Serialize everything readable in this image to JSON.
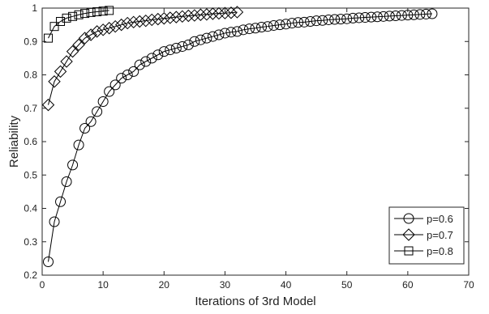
{
  "chart_data": {
    "type": "line",
    "title": "",
    "xlabel": "Iterations of 3rd Model",
    "ylabel": "Reliability",
    "xlim": [
      0,
      70
    ],
    "ylim": [
      0.2,
      1.0
    ],
    "xticks": [
      0,
      10,
      20,
      30,
      40,
      50,
      60,
      70
    ],
    "yticks": [
      0.2,
      0.3,
      0.4,
      0.5,
      0.6,
      0.7,
      0.8,
      0.9,
      1.0
    ],
    "xtick_labels": [
      "0",
      "10",
      "20",
      "30",
      "40",
      "50",
      "60",
      "70"
    ],
    "ytick_labels": [
      "0.2",
      "0.3",
      "0.4",
      "0.5",
      "0.6",
      "0.7",
      "0.8",
      "0.9",
      "1"
    ],
    "grid": false,
    "legend_position": "bottom-right",
    "line_color": "#000000",
    "series": [
      {
        "name": "p=0.6",
        "marker": "circle",
        "x": [
          1,
          2,
          3,
          4,
          5,
          6,
          7,
          8,
          9,
          10,
          11,
          12,
          13,
          14,
          15,
          16,
          17,
          18,
          19,
          20,
          21,
          22,
          23,
          24,
          25,
          26,
          27,
          28,
          29,
          30,
          31,
          32,
          33,
          34,
          35,
          36,
          37,
          38,
          39,
          40,
          41,
          42,
          43,
          44,
          45,
          46,
          47,
          48,
          49,
          50,
          51,
          52,
          53,
          54,
          55,
          56,
          57,
          58,
          59,
          60,
          61,
          62,
          63,
          64
        ],
        "y": [
          0.24,
          0.36,
          0.42,
          0.48,
          0.53,
          0.59,
          0.64,
          0.66,
          0.69,
          0.72,
          0.75,
          0.77,
          0.79,
          0.8,
          0.81,
          0.83,
          0.84,
          0.85,
          0.86,
          0.87,
          0.875,
          0.88,
          0.885,
          0.89,
          0.9,
          0.905,
          0.91,
          0.915,
          0.92,
          0.925,
          0.928,
          0.93,
          0.935,
          0.938,
          0.94,
          0.943,
          0.945,
          0.948,
          0.95,
          0.952,
          0.955,
          0.957,
          0.958,
          0.96,
          0.962,
          0.963,
          0.965,
          0.966,
          0.967,
          0.968,
          0.97,
          0.971,
          0.972,
          0.973,
          0.974,
          0.975,
          0.976,
          0.977,
          0.978,
          0.979,
          0.98,
          0.981,
          0.982,
          0.983
        ]
      },
      {
        "name": "p=0.7",
        "marker": "diamond",
        "x": [
          1,
          2,
          3,
          4,
          5,
          6,
          7,
          8,
          9,
          10,
          11,
          12,
          13,
          14,
          15,
          16,
          17,
          18,
          19,
          20,
          21,
          22,
          23,
          24,
          25,
          26,
          27,
          28,
          29,
          30,
          31,
          32
        ],
        "y": [
          0.71,
          0.78,
          0.81,
          0.84,
          0.87,
          0.89,
          0.91,
          0.92,
          0.93,
          0.935,
          0.94,
          0.945,
          0.95,
          0.955,
          0.958,
          0.96,
          0.962,
          0.965,
          0.967,
          0.969,
          0.971,
          0.973,
          0.975,
          0.977,
          0.978,
          0.98,
          0.981,
          0.983,
          0.984,
          0.985,
          0.986,
          0.988
        ]
      },
      {
        "name": "p=0.8",
        "marker": "square",
        "x": [
          1,
          2,
          3,
          4,
          5,
          6,
          7,
          8,
          9,
          10,
          11
        ],
        "y": [
          0.91,
          0.945,
          0.96,
          0.97,
          0.975,
          0.98,
          0.984,
          0.987,
          0.989,
          0.991,
          0.993
        ]
      }
    ]
  }
}
